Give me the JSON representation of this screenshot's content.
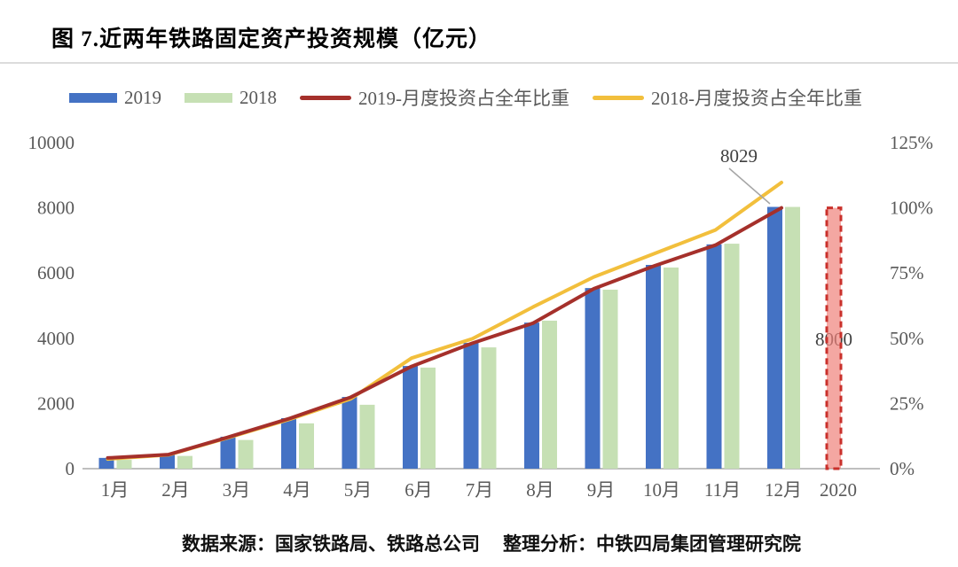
{
  "title": "图 7.近两年铁路固定资产投资规模（亿元）",
  "footer": {
    "source": "数据来源：国家铁路局、铁路总公司",
    "analysis": "整理分析：中铁四局集团管理研究院"
  },
  "chart_data": {
    "type": "combo-bar-line",
    "title": "图 7.近两年铁路固定资产投资规模（亿元）",
    "categories": [
      "1月",
      "2月",
      "3月",
      "4月",
      "5月",
      "6月",
      "7月",
      "8月",
      "9月",
      "10月",
      "11月",
      "12月"
    ],
    "extra_category": "2020",
    "bar_series": [
      {
        "name": "2019",
        "color": "#4472c4",
        "axis": "left",
        "values": [
          330,
          430,
          980,
          1550,
          2200,
          3150,
          3860,
          4480,
          5540,
          6250,
          6880,
          8029
        ]
      },
      {
        "name": "2018",
        "color": "#c6e0b4",
        "axis": "left",
        "values": [
          270,
          390,
          880,
          1390,
          1960,
          3100,
          3720,
          4540,
          5490,
          6170,
          6900,
          8028
        ]
      }
    ],
    "line_series": [
      {
        "name": "2019-月度投资占全年比重",
        "color": "#a5302b",
        "axis": "right",
        "values_pct": [
          4.1,
          5.4,
          12.2,
          19.3,
          27.4,
          39.2,
          48.1,
          55.8,
          69.0,
          77.8,
          85.7,
          100.0
        ]
      },
      {
        "name": "2018-月度投资占全年比重",
        "color": "#f2bf3c",
        "axis": "right",
        "values_pct": [
          3.7,
          5.3,
          12.0,
          19.0,
          26.8,
          42.4,
          49.8,
          62.0,
          73.5,
          82.5,
          91.5,
          109.7
        ]
      }
    ],
    "planned_bar": {
      "category": "2020",
      "value": 8000,
      "label": "8000",
      "fill": "#f0817b",
      "fill_opacity": 0.7,
      "border": "#c9302b",
      "style": "dashed"
    },
    "annotation": {
      "text": "8029",
      "series": "2019",
      "category": "12月"
    },
    "left_axis": {
      "ticks": [
        0,
        2000,
        4000,
        6000,
        8000,
        10000
      ],
      "min": 0,
      "max": 10000
    },
    "right_axis": {
      "tick_labels": [
        "0%",
        "25%",
        "50%",
        "75%",
        "100%",
        "125%"
      ],
      "min_pct": 0,
      "max_pct": 125
    },
    "grid": false,
    "legend_position": "top",
    "axis_label_color": "#595959",
    "baseline_color": "#bfbfbf",
    "leader_line_color": "#a6a6a6"
  }
}
